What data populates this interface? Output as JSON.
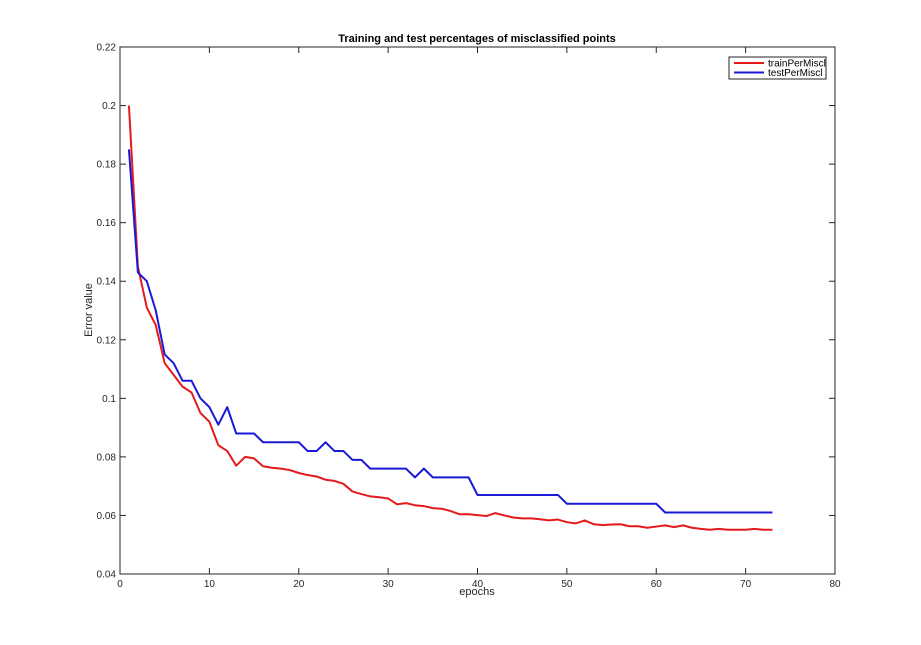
{
  "chart_data": {
    "type": "line",
    "title": "Training and test percentages of misclassified points",
    "xlabel": "epochs",
    "ylabel": "Error value",
    "xlim": [
      0,
      80
    ],
    "ylim": [
      0.04,
      0.22
    ],
    "xticks": [
      0,
      10,
      20,
      30,
      40,
      50,
      60,
      70,
      80
    ],
    "xtick_labels": [
      "0",
      "10",
      "20",
      "30",
      "40",
      "50",
      "60",
      "70",
      "80"
    ],
    "yticks": [
      0.04,
      0.06,
      0.08,
      0.1,
      0.12,
      0.14,
      0.16,
      0.18,
      0.2,
      0.22
    ],
    "ytick_labels": [
      "0.04",
      "0.06",
      "0.08",
      "0.1",
      "0.12",
      "0.14",
      "0.16",
      "0.18",
      "0.2",
      "0.22"
    ],
    "grid": false,
    "legend_position": "top-right",
    "x": [
      1,
      2,
      3,
      4,
      5,
      6,
      7,
      8,
      9,
      10,
      11,
      12,
      13,
      14,
      15,
      16,
      17,
      18,
      19,
      20,
      21,
      22,
      23,
      24,
      25,
      26,
      27,
      28,
      29,
      30,
      31,
      32,
      33,
      34,
      35,
      36,
      37,
      38,
      39,
      40,
      41,
      42,
      43,
      44,
      45,
      46,
      47,
      48,
      49,
      50,
      51,
      52,
      53,
      54,
      55,
      56,
      57,
      58,
      59,
      60,
      61,
      62,
      63,
      64,
      65,
      66,
      67,
      68,
      69,
      70,
      71,
      72,
      73
    ],
    "series": [
      {
        "name": "trainPerMiscl",
        "color": "#e41a1c",
        "values": [
          0.2,
          0.145,
          0.131,
          0.125,
          0.112,
          0.108,
          0.104,
          0.102,
          0.095,
          0.092,
          0.084,
          0.082,
          0.077,
          0.08,
          0.0795,
          0.0768,
          0.0763,
          0.076,
          0.0755,
          0.0745,
          0.0738,
          0.0733,
          0.0722,
          0.0718,
          0.0708,
          0.0682,
          0.0673,
          0.0665,
          0.0662,
          0.0658,
          0.0638,
          0.0642,
          0.0635,
          0.0632,
          0.0625,
          0.0623,
          0.0615,
          0.0604,
          0.0604,
          0.0601,
          0.0598,
          0.0608,
          0.06,
          0.0593,
          0.059,
          0.059,
          0.0587,
          0.0583,
          0.0586,
          0.0577,
          0.0573,
          0.0583,
          0.057,
          0.0567,
          0.0569,
          0.057,
          0.0563,
          0.0563,
          0.0558,
          0.0562,
          0.0566,
          0.056,
          0.0566,
          0.0558,
          0.0554,
          0.0551,
          0.0554,
          0.0551,
          0.0551,
          0.0551,
          0.0554,
          0.0551,
          0.0551
        ]
      },
      {
        "name": "testPerMiscl",
        "color": "#1a1ad6",
        "values": [
          0.185,
          0.143,
          0.14,
          0.13,
          0.115,
          0.112,
          0.106,
          0.106,
          0.1,
          0.097,
          0.091,
          0.097,
          0.088,
          0.088,
          0.088,
          0.085,
          0.085,
          0.085,
          0.085,
          0.085,
          0.082,
          0.082,
          0.085,
          0.082,
          0.082,
          0.079,
          0.079,
          0.076,
          0.076,
          0.076,
          0.076,
          0.076,
          0.073,
          0.076,
          0.073,
          0.073,
          0.073,
          0.073,
          0.073,
          0.067,
          0.067,
          0.067,
          0.067,
          0.067,
          0.067,
          0.067,
          0.067,
          0.067,
          0.067,
          0.064,
          0.064,
          0.064,
          0.064,
          0.064,
          0.064,
          0.064,
          0.064,
          0.064,
          0.064,
          0.064,
          0.061,
          0.061,
          0.061,
          0.061,
          0.061,
          0.061,
          0.061,
          0.061,
          0.061,
          0.061,
          0.061,
          0.061,
          0.061
        ]
      }
    ]
  }
}
